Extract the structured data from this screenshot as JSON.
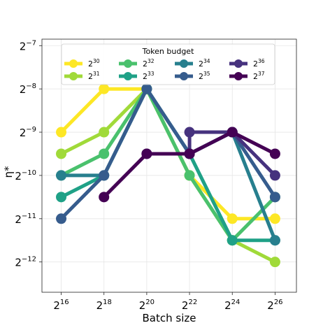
{
  "chart_data": {
    "type": "line",
    "title": "",
    "xlabel": "Batch size",
    "ylabel": "η*",
    "x_scale": "log2",
    "y_scale": "log2",
    "x_ticks": [
      16,
      18,
      20,
      22,
      24,
      26
    ],
    "y_ticks": [
      -12,
      -11,
      -10,
      -9,
      -8,
      -7
    ],
    "tick_base": "2",
    "xlim_exp": [
      15.1,
      27.0
    ],
    "ylim_exp": [
      -12.7,
      -6.85
    ],
    "grid": true,
    "legend": {
      "title": "Token budget",
      "placement": "top-center",
      "ncol": 4
    },
    "series": [
      {
        "name_base": "2",
        "name_exp": "30",
        "color": "#fde725",
        "x_exp": [
          16,
          18,
          20
        ],
        "y_exp": [
          -9,
          -8,
          -8
        ]
      },
      {
        "name_base": "2",
        "name_exp": "31",
        "color": "#a0da39",
        "x_exp": [
          16,
          18,
          20
        ],
        "y_exp": [
          -9.5,
          -9,
          -8
        ]
      },
      {
        "name_base": "2",
        "name_exp": "32",
        "color": "#4ac16d",
        "x_exp": [
          16,
          18,
          20
        ],
        "y_exp": [
          -10,
          -9.5,
          -8
        ]
      },
      {
        "name_base": "2",
        "name_exp": "33",
        "color": "#1fa187",
        "x_exp": [
          16,
          18,
          20
        ],
        "y_exp": [
          -10.5,
          -10,
          -8
        ]
      },
      {
        "name_base": "2",
        "name_exp": "34",
        "color": "#277f8e",
        "x_exp": [
          16,
          18,
          20
        ],
        "y_exp": [
          -10,
          -10,
          -8
        ]
      },
      {
        "name_base": "2",
        "name_exp": "35",
        "color": "#365c8d",
        "x_exp": [
          16,
          18,
          20
        ],
        "y_exp": [
          -11,
          -10,
          -8
        ]
      },
      {
        "name_base": "2",
        "name_exp": "36",
        "color": "#46327e",
        "x_exp": [
          20,
          22
        ],
        "y_exp": [
          -9.5,
          -9.5
        ]
      },
      {
        "name_base": "2",
        "name_exp": "37",
        "color": "#440154",
        "x_exp": [
          18,
          20,
          22
        ],
        "y_exp": [
          -10.5,
          -9.5,
          -9.5
        ]
      }
    ],
    "extended": {
      "note_x": [
        22,
        24,
        26
      ],
      "s30": [
        -10,
        -11,
        -11
      ],
      "s31": [
        -10,
        -11.5,
        -12
      ],
      "s32": [
        -10,
        -11.5,
        -10.5
      ],
      "s33": [
        -9.5,
        -11.5,
        -11.5
      ],
      "s34": [
        -9.5,
        -9,
        -11.5
      ],
      "s35": [
        -9.5,
        -9,
        -10.5
      ],
      "s36": [
        -9,
        -9,
        -10
      ],
      "s37": [
        -9.5,
        -9,
        -9.5
      ]
    }
  }
}
